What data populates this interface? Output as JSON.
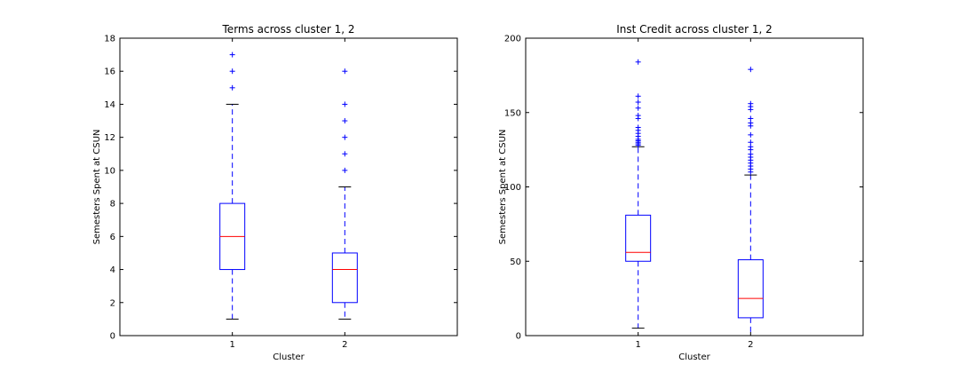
{
  "colors": {
    "box": "#0000ff",
    "median": "#ff0000",
    "whisker": "#0000ff",
    "cap": "#000000",
    "flier": "#0000ff",
    "frame": "#000000",
    "background": "#ffffff"
  },
  "chart_data": [
    {
      "type": "box",
      "title": "Terms across cluster 1, 2",
      "xlabel": "Cluster",
      "ylabel": "Semesters Spent at CSUN",
      "categories": [
        "1",
        "2"
      ],
      "ylim": [
        0,
        18
      ],
      "yticks": [
        0,
        2,
        4,
        6,
        8,
        10,
        12,
        14,
        16,
        18
      ],
      "grid": false,
      "boxes": [
        {
          "category": "1",
          "whisker_low": 1,
          "q1": 4,
          "median": 6,
          "q3": 8,
          "whisker_high": 14,
          "fliers": [
            15,
            16,
            17
          ]
        },
        {
          "category": "2",
          "whisker_low": 1,
          "q1": 2,
          "median": 4,
          "q3": 5,
          "whisker_high": 9,
          "fliers": [
            10,
            11,
            12,
            13,
            14,
            16
          ]
        }
      ]
    },
    {
      "type": "box",
      "title": "Inst Credit across cluster 1, 2",
      "xlabel": "Cluster",
      "ylabel": "Semesters Spent at CSUN",
      "categories": [
        "1",
        "2"
      ],
      "ylim": [
        0,
        200
      ],
      "yticks": [
        0,
        50,
        100,
        150,
        200
      ],
      "grid": false,
      "boxes": [
        {
          "category": "1",
          "whisker_low": 5,
          "q1": 50,
          "median": 56,
          "q3": 81,
          "whisker_high": 127,
          "fliers": [
            128,
            129,
            130,
            131,
            132,
            134,
            136,
            138,
            140,
            146,
            148,
            153,
            157,
            161,
            184
          ]
        },
        {
          "category": "2",
          "whisker_low": 0,
          "q1": 12,
          "median": 25,
          "q3": 51,
          "whisker_high": 108,
          "fliers": [
            110,
            112,
            114,
            116,
            118,
            120,
            122,
            125,
            127,
            130,
            135,
            141,
            143,
            146,
            152,
            154,
            156,
            179
          ]
        }
      ]
    }
  ]
}
